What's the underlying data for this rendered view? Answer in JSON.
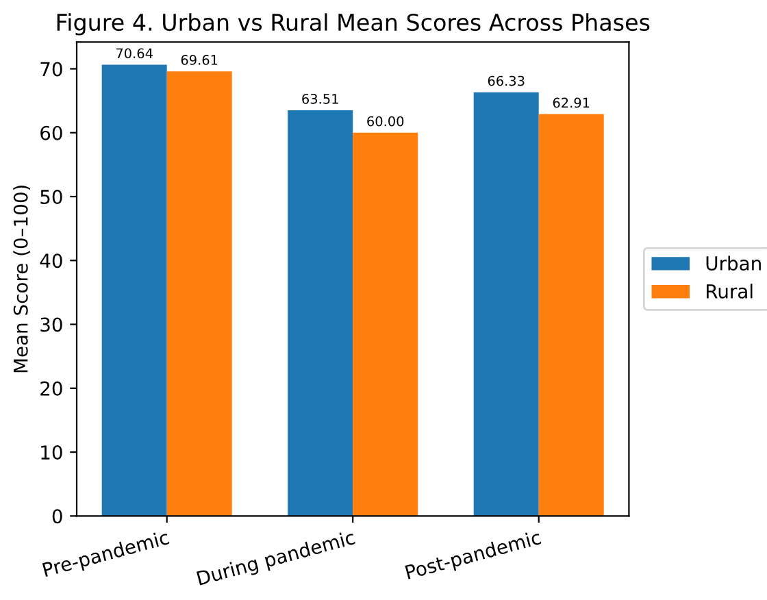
{
  "chart_data": {
    "type": "bar",
    "title": "Figure 4. Urban vs Rural Mean Scores Across Phases",
    "ylabel": "Mean Score (0–100)",
    "categories": [
      "Pre-pandemic",
      "During pandemic",
      "Post-pandemic"
    ],
    "series": [
      {
        "name": "Urban",
        "color": "#1f77b4",
        "values": [
          70.64,
          63.51,
          66.33
        ]
      },
      {
        "name": "Rural",
        "color": "#ff7f0e",
        "values": [
          69.61,
          60.0,
          62.91
        ]
      }
    ],
    "value_labels": [
      [
        "70.64",
        "63.51",
        "66.33"
      ],
      [
        "69.61",
        "60.00",
        "62.91"
      ]
    ],
    "ylim": [
      0,
      74.2
    ],
    "yticks": [
      0,
      10,
      20,
      30,
      40,
      50,
      60,
      70
    ],
    "grid": false,
    "legend": "right"
  }
}
